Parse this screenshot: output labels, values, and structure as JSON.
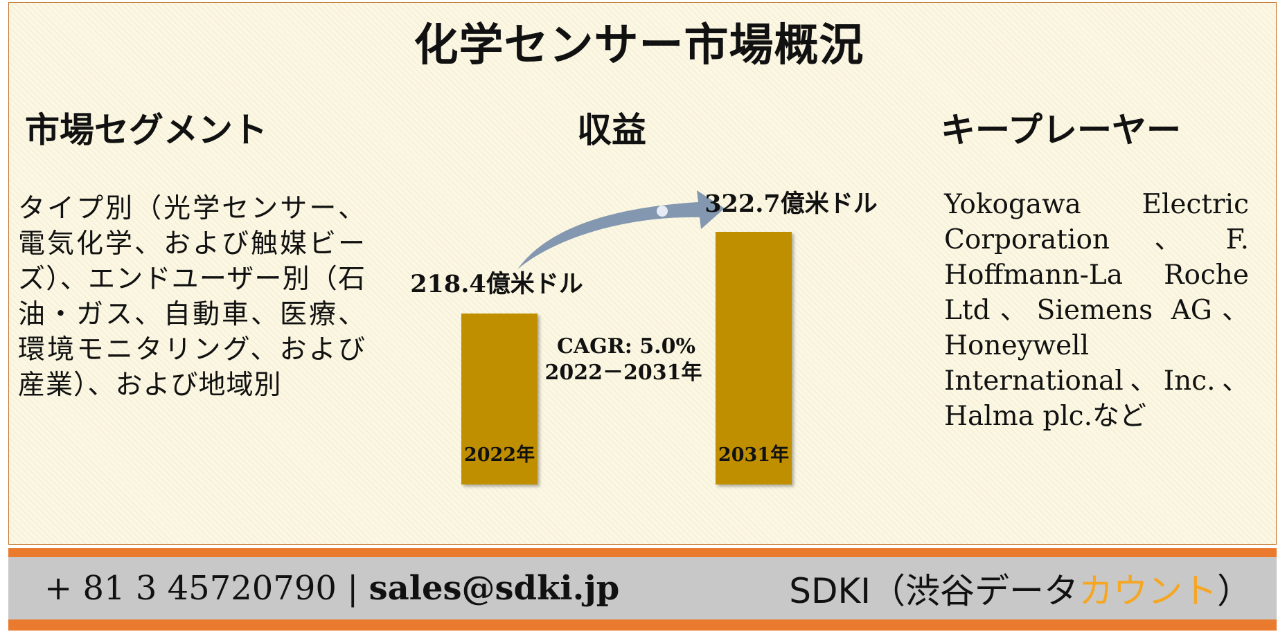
{
  "title": "化学センサー市場概況",
  "columns": {
    "segments": {
      "heading": "市場セグメント",
      "text": "タイプ別（光学センサー、電気化学、および触媒ビーズ）、エンドユーザー別（石油・ガス、自動車、医療、環境モニタリング、および産業）、および地域別"
    },
    "revenue": {
      "heading": "収益"
    },
    "players": {
      "heading": "キープレーヤー",
      "text": "Yokogawa Electric Corporation、F. Hoffmann-La Roche Ltd、Siemens AG、Honeywell International、Inc.、Halma plc.など"
    }
  },
  "chart_data": {
    "type": "bar",
    "categories": [
      "2022年",
      "2031年"
    ],
    "values": [
      218.4,
      322.7
    ],
    "value_labels": [
      "218.4億米ドル",
      "322.7億米ドル"
    ],
    "cagr_label": "CAGR: 5.0%",
    "cagr_period": "2022－2031年",
    "colors": {
      "bar": "#bf8f00",
      "arrow": "#8497b0"
    }
  },
  "footer": {
    "phone": "+ 81 3 45720790",
    "separator": " | ",
    "email": "sales@sdki.jp",
    "brand_main": "SDKI（渋谷データ",
    "brand_accent": "カウント",
    "brand_end": "）",
    "colors": {
      "bar": "#ea7a2d",
      "band": "#c8c8c8",
      "accent": "#f5a623"
    }
  }
}
